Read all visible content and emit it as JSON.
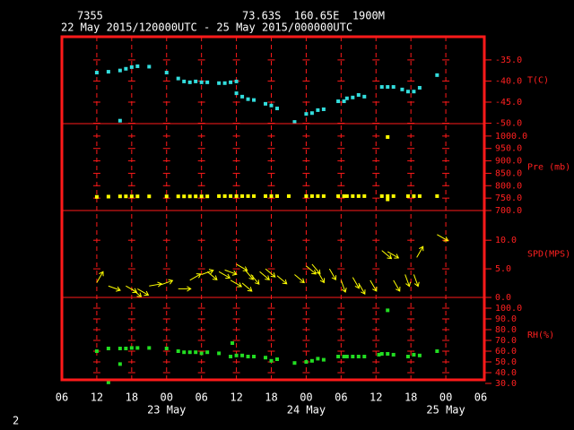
{
  "header": {
    "station": "7355",
    "location": "73.63S  160.65E  1900M",
    "period": "22 May 2015/120000UTC - 25 May 2015/000000UTC",
    "page": "2"
  },
  "x_axis": {
    "xlim": [
      0,
      72
    ],
    "xticks": [
      {
        "value": 0,
        "label": "06"
      },
      {
        "value": 6,
        "label": "12"
      },
      {
        "value": 12,
        "label": "18"
      },
      {
        "value": 18,
        "label": "00"
      },
      {
        "value": 24,
        "label": "06"
      },
      {
        "value": 30,
        "label": "12"
      },
      {
        "value": 36,
        "label": "18"
      },
      {
        "value": 42,
        "label": "00"
      },
      {
        "value": 48,
        "label": "06"
      },
      {
        "value": 54,
        "label": "12"
      },
      {
        "value": 60,
        "label": "18"
      },
      {
        "value": 66,
        "label": "00"
      },
      {
        "value": 72,
        "label": "06"
      }
    ],
    "date_labels": [
      {
        "value": 18,
        "label": "23 May"
      },
      {
        "value": 42,
        "label": "24 May"
      },
      {
        "value": 66,
        "label": "25 May"
      }
    ]
  },
  "chart_data": [
    {
      "type": "scatter",
      "ylabel": "T(C)",
      "color": "#33dddd",
      "ylim": [
        -50.1,
        -29.5
      ],
      "yticks": [
        {
          "value": -35,
          "label": "-35.0"
        },
        {
          "value": -40,
          "label": "-40.0"
        },
        {
          "value": -45,
          "label": "-45.0"
        },
        {
          "value": -50,
          "label": "-50.0"
        }
      ],
      "x": [
        6,
        8,
        10,
        10,
        11,
        12,
        13,
        15,
        18,
        20,
        21,
        22,
        23,
        24,
        25,
        27,
        28,
        29,
        30,
        30,
        31,
        32,
        33,
        35,
        36,
        37,
        40,
        42,
        43,
        44,
        45,
        47.5,
        48.5,
        49,
        50,
        51,
        52,
        55,
        56,
        57,
        58.5,
        59.5,
        60.5,
        61.5,
        64.5
      ],
      "values": [
        -38.0,
        -37.8,
        -37.5,
        -49.4,
        -37.1,
        -36.7,
        -36.5,
        -36.6,
        -38.0,
        -39.4,
        -40.1,
        -40.3,
        -40.1,
        -40.3,
        -40.3,
        -40.5,
        -40.5,
        -40.3,
        -40.1,
        -42.9,
        -43.7,
        -44.3,
        -44.5,
        -45.4,
        -45.8,
        -46.5,
        -49.7,
        -47.8,
        -47.6,
        -46.9,
        -46.7,
        -44.8,
        -44.8,
        -44.1,
        -43.9,
        -43.3,
        -43.7,
        -41.4,
        -41.4,
        -41.4,
        -42.0,
        -42.5,
        -42.5,
        -41.6,
        -38.6
      ]
    },
    {
      "type": "scatter",
      "ylabel": "Pre (mb)",
      "color": "#ffff00",
      "ylim": [
        700,
        1050
      ],
      "yticks": [
        {
          "value": 1000,
          "label": "1000.0"
        },
        {
          "value": 950,
          "label": "950.0"
        },
        {
          "value": 900,
          "label": "900.0"
        },
        {
          "value": 850,
          "label": "850.0"
        },
        {
          "value": 800,
          "label": "800.0"
        },
        {
          "value": 750,
          "label": "750.0"
        },
        {
          "value": 700,
          "label": "700.0"
        }
      ],
      "x": [
        6,
        8,
        10,
        11,
        12,
        13,
        15,
        18,
        20,
        21,
        22,
        23,
        24,
        25,
        27,
        28,
        29,
        30,
        31,
        32,
        33,
        35,
        36,
        37,
        39,
        42,
        43,
        44,
        45,
        47.5,
        48.5,
        49,
        50,
        51,
        52,
        55,
        56,
        56,
        56,
        57,
        59.5,
        60.5,
        61.5,
        64.5
      ],
      "values": [
        755,
        756,
        757,
        757,
        757,
        757,
        757,
        757,
        757,
        757,
        757,
        757,
        757,
        757,
        758,
        758,
        758,
        758,
        758,
        758,
        758,
        758,
        758,
        758,
        758,
        758,
        758,
        758,
        758,
        758,
        758,
        758,
        758,
        758,
        758,
        758,
        758,
        745,
        996,
        758,
        758,
        758,
        758,
        758
      ]
    },
    {
      "type": "quiver",
      "ylabel": "SPD(MPS)",
      "color": "#ffff00",
      "ylim": [
        0,
        15.2
      ],
      "yticks": [
        {
          "value": 10,
          "label": "10.0"
        },
        {
          "value": 5,
          "label": "5.0"
        },
        {
          "value": 0,
          "label": "0.0"
        }
      ],
      "x": [
        6,
        8,
        11,
        12,
        13,
        15,
        17,
        20,
        22,
        24,
        25,
        27,
        28,
        29,
        30,
        31,
        31.5,
        32.5,
        34,
        35,
        37,
        40,
        42,
        43,
        44,
        46,
        48,
        50,
        51,
        53,
        55,
        56,
        57,
        59,
        60.5,
        61,
        64.5
      ],
      "values": [
        2.6,
        2.0,
        2.0,
        1.5,
        1.5,
        2.0,
        2.2,
        1.5,
        3.0,
        4.0,
        4.5,
        4.5,
        4.8,
        3.0,
        5.8,
        2.5,
        4.8,
        4.0,
        4.5,
        5.0,
        3.8,
        4.0,
        5.5,
        5.8,
        4.5,
        5.0,
        3.0,
        3.5,
        2.5,
        3.0,
        8.2,
        8.0,
        3.0,
        4.0,
        4.0,
        7.0,
        11.0
      ],
      "direction": [
        300,
        20,
        30,
        40,
        30,
        350,
        340,
        0,
        330,
        340,
        40,
        30,
        20,
        30,
        30,
        40,
        50,
        50,
        40,
        40,
        40,
        40,
        40,
        50,
        60,
        60,
        70,
        60,
        60,
        60,
        40,
        30,
        60,
        70,
        70,
        300,
        30
      ]
    },
    {
      "type": "scatter",
      "ylabel": "RH(%)",
      "color": "#22dd22",
      "ylim": [
        30,
        110
      ],
      "yticks": [
        {
          "value": 100,
          "label": "100.0"
        },
        {
          "value": 90,
          "label": "90.0"
        },
        {
          "value": 80,
          "label": "80.0"
        },
        {
          "value": 70,
          "label": "70.0"
        },
        {
          "value": 60,
          "label": "60.0"
        },
        {
          "value": 50,
          "label": "50.0"
        },
        {
          "value": 40,
          "label": "40.0"
        },
        {
          "value": 30,
          "label": "30.0"
        }
      ],
      "x": [
        6,
        8,
        8,
        10,
        10,
        11,
        12,
        13,
        15,
        18,
        20,
        21,
        22,
        23,
        24,
        25,
        27,
        29,
        29.3,
        30,
        31,
        32,
        33,
        35,
        36,
        37,
        40,
        42,
        43,
        44,
        45,
        47.5,
        48.5,
        49,
        50,
        51,
        52,
        54.5,
        55,
        56,
        56,
        57,
        59.5,
        60.5,
        61.5,
        64.5
      ],
      "values": [
        60,
        62.5,
        31,
        48,
        62.5,
        62.5,
        63,
        63,
        63,
        62.5,
        60,
        59,
        59,
        59,
        58,
        59,
        58,
        55,
        67.5,
        56,
        56,
        55,
        55,
        54,
        51,
        52.5,
        49,
        50,
        51,
        53,
        52,
        55,
        55,
        55,
        55,
        55,
        55,
        56.7,
        57.5,
        98,
        57.5,
        56.7,
        55,
        56.7,
        56,
        60
      ]
    }
  ]
}
